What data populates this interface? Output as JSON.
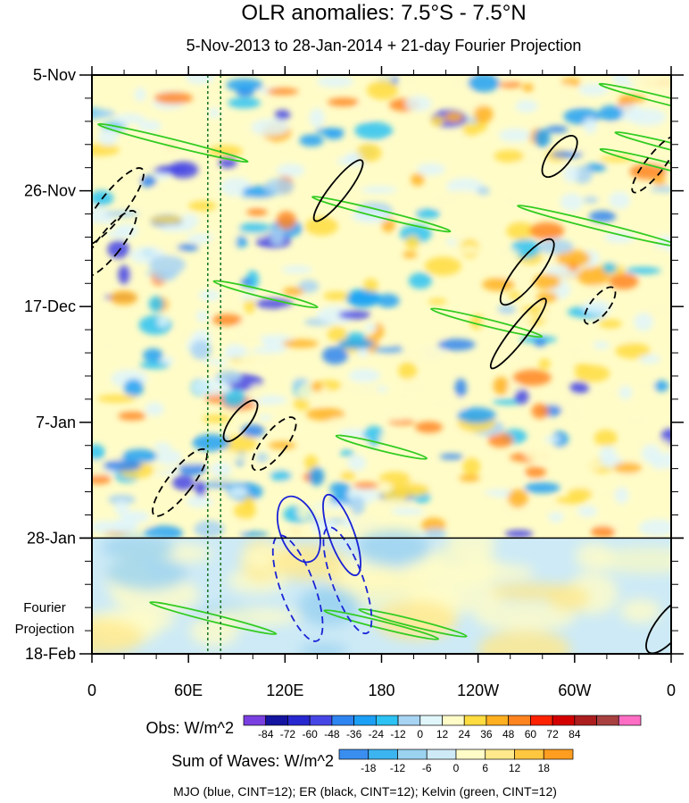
{
  "chart_data": {
    "type": "heatmap",
    "title": "OLR anomalies: 7.5°S - 7.5°N",
    "subtitle": "5-Nov-2013 to 28-Jan-2014 + 21-day Fourier Projection",
    "x_axis": {
      "ticks": [
        "0",
        "60E",
        "120E",
        "180",
        "120W",
        "60W",
        "0"
      ],
      "range_deg_east": [
        0,
        360
      ]
    },
    "y_axis": {
      "ticks": [
        "5-Nov",
        "26-Nov",
        "17-Dec",
        "7-Jan",
        "28-Jan",
        "18-Feb"
      ],
      "range": [
        "5-Nov-2013",
        "18-Feb-2014"
      ],
      "time_direction": "downward"
    },
    "projection_label": [
      "Fourier",
      "Projection"
    ],
    "observation_end": "28-Jan",
    "reference_longitudes_deg_east": [
      72,
      80
    ],
    "obs_colorbar": {
      "label": "Obs: W/m^2",
      "ticks": [
        "-84",
        "-72",
        "-60",
        "-48",
        "-36",
        "-24",
        "-12",
        "0",
        "12",
        "24",
        "36",
        "48",
        "60",
        "72",
        "84"
      ],
      "colors": [
        "#7a3fe0",
        "#1414a0",
        "#2828d0",
        "#4646e6",
        "#2e84f0",
        "#1ca0f5",
        "#2cc2f3",
        "#a8d4f3",
        "#e0f6fb",
        "#fffcc8",
        "#ffdc40",
        "#ffb020",
        "#ff8420",
        "#ff2200",
        "#d40000",
        "#ac1e1e",
        "#a84040",
        "#ff6ec4"
      ]
    },
    "waves_colorbar": {
      "label": "Sum of Waves: W/m^2",
      "ticks": [
        "-18",
        "-12",
        "-6",
        "0",
        "6",
        "12",
        "18"
      ],
      "colors": [
        "#3a8ef0",
        "#3cb4f0",
        "#9ad2f0",
        "#cdeaf6",
        "#fffcc8",
        "#ffe98c",
        "#ffc640",
        "#ff9d20"
      ]
    },
    "contour_legend": "MJO (blue, CINT=12); ER (black, CINT=12); Kelvin (green, CINT=12)",
    "series": [
      {
        "wave": "MJO",
        "color": "#1a23d6",
        "contour_interval": 12
      },
      {
        "wave": "ER",
        "color": "#000000",
        "contour_interval": 12
      },
      {
        "wave": "Kelvin",
        "color": "#33cc22",
        "contour_interval": 12
      }
    ]
  }
}
